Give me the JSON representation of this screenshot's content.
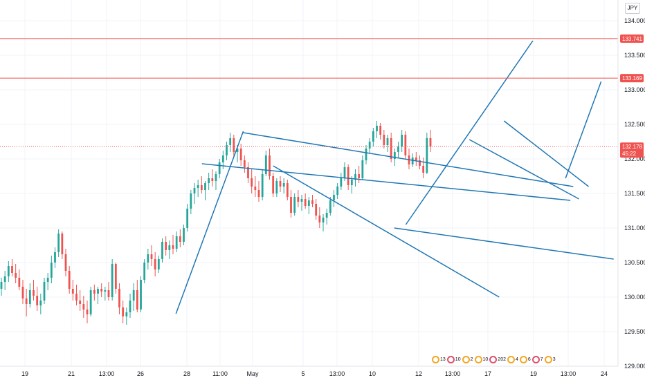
{
  "currency": "JPY",
  "countdown": "45:22",
  "colors": {
    "up": "#26a69a",
    "down": "#ef5350",
    "trendline": "#1f77b4",
    "hline": "#ef5350",
    "price_badge": "#ef5350",
    "axis_text": "#131722",
    "grid": "#f0f3fa"
  },
  "chart_data": {
    "type": "candlestick",
    "title": "",
    "xlabel": "",
    "ylabel": "",
    "ylim": [
      128.8,
      134.3
    ],
    "y_ticks": [
      "134.000",
      "133.500",
      "133.000",
      "132.500",
      "132.000",
      "131.500",
      "131.000",
      "130.500",
      "130.000",
      "129.500",
      "129.000"
    ],
    "x_ticks": [
      "19",
      "21",
      "13:00",
      "26",
      "28",
      "11:00",
      "May",
      "5",
      "13:00",
      "10",
      "12",
      "13:00",
      "17",
      "19",
      "13:00",
      "24"
    ],
    "horizontal_levels": [
      {
        "value": 133.741,
        "label": "133.741"
      },
      {
        "value": 133.169,
        "label": "133.169"
      }
    ],
    "last_price": {
      "value": 132.178,
      "label": "132.178"
    },
    "candles": [
      [
        130.12,
        130.28,
        130.02,
        130.22
      ],
      [
        130.22,
        130.38,
        130.1,
        130.3
      ],
      [
        130.3,
        130.52,
        130.22,
        130.45
      ],
      [
        130.45,
        130.55,
        130.3,
        130.35
      ],
      [
        130.35,
        130.48,
        130.2,
        130.28
      ],
      [
        130.28,
        130.4,
        130.1,
        130.15
      ],
      [
        130.15,
        130.25,
        129.9,
        129.98
      ],
      [
        129.98,
        130.12,
        129.72,
        129.9
      ],
      [
        129.9,
        130.2,
        129.85,
        130.1
      ],
      [
        130.1,
        130.25,
        129.95,
        130.02
      ],
      [
        130.02,
        130.15,
        129.8,
        129.88
      ],
      [
        129.88,
        130.05,
        129.75,
        129.95
      ],
      [
        129.95,
        130.28,
        129.9,
        130.22
      ],
      [
        130.22,
        130.35,
        130.1,
        130.28
      ],
      [
        130.28,
        130.6,
        130.2,
        130.5
      ],
      [
        130.5,
        130.72,
        130.42,
        130.65
      ],
      [
        130.65,
        130.98,
        130.58,
        130.92
      ],
      [
        130.92,
        130.95,
        130.55,
        130.62
      ],
      [
        130.62,
        130.7,
        130.3,
        130.38
      ],
      [
        130.38,
        130.45,
        130.05,
        130.12
      ],
      [
        130.12,
        130.25,
        129.95,
        130.05
      ],
      [
        130.05,
        130.18,
        129.88,
        129.95
      ],
      [
        129.95,
        130.1,
        129.8,
        129.9
      ],
      [
        129.9,
        130.02,
        129.7,
        129.82
      ],
      [
        129.82,
        129.95,
        129.62,
        129.75
      ],
      [
        129.75,
        130.15,
        129.72,
        130.1
      ],
      [
        130.1,
        130.18,
        129.95,
        130.05
      ],
      [
        130.05,
        130.15,
        129.9,
        130.12
      ],
      [
        130.12,
        130.2,
        130.0,
        130.08
      ],
      [
        130.08,
        130.15,
        129.95,
        130.1
      ],
      [
        130.1,
        130.22,
        129.95,
        130.0
      ],
      [
        130.0,
        130.55,
        129.95,
        130.48
      ],
      [
        130.48,
        130.5,
        130.05,
        130.12
      ],
      [
        130.12,
        130.2,
        129.75,
        129.85
      ],
      [
        129.85,
        129.95,
        129.62,
        129.72
      ],
      [
        129.72,
        129.85,
        129.6,
        129.78
      ],
      [
        129.78,
        130.05,
        129.7,
        129.95
      ],
      [
        129.95,
        130.2,
        129.8,
        130.1
      ],
      [
        130.1,
        130.25,
        129.78,
        129.82
      ],
      [
        129.82,
        130.3,
        129.78,
        130.25
      ],
      [
        130.25,
        130.55,
        130.2,
        130.5
      ],
      [
        130.5,
        130.7,
        130.4,
        130.62
      ],
      [
        130.62,
        130.75,
        130.45,
        130.55
      ],
      [
        130.55,
        130.65,
        130.3,
        130.4
      ],
      [
        130.4,
        130.6,
        130.35,
        130.55
      ],
      [
        130.55,
        130.85,
        130.5,
        130.8
      ],
      [
        130.8,
        130.88,
        130.6,
        130.68
      ],
      [
        130.68,
        130.82,
        130.55,
        130.75
      ],
      [
        130.75,
        130.9,
        130.62,
        130.7
      ],
      [
        130.7,
        130.95,
        130.65,
        130.88
      ],
      [
        130.88,
        130.98,
        130.72,
        130.8
      ],
      [
        130.8,
        131.05,
        130.75,
        131.0
      ],
      [
        131.0,
        131.35,
        130.95,
        131.28
      ],
      [
        131.28,
        131.55,
        131.2,
        131.5
      ],
      [
        131.5,
        131.65,
        131.35,
        131.58
      ],
      [
        131.58,
        131.7,
        131.45,
        131.62
      ],
      [
        131.62,
        131.75,
        131.5,
        131.55
      ],
      [
        131.55,
        131.68,
        131.4,
        131.65
      ],
      [
        131.65,
        131.8,
        131.55,
        131.72
      ],
      [
        131.72,
        131.85,
        131.6,
        131.68
      ],
      [
        131.68,
        131.82,
        131.55,
        131.78
      ],
      [
        131.78,
        132.0,
        131.72,
        131.95
      ],
      [
        131.95,
        132.12,
        131.85,
        132.05
      ],
      [
        132.05,
        132.25,
        131.98,
        132.2
      ],
      [
        132.2,
        132.38,
        132.1,
        132.3
      ],
      [
        132.3,
        132.35,
        132.02,
        132.1
      ],
      [
        132.1,
        132.2,
        131.95,
        132.15
      ],
      [
        132.15,
        132.22,
        131.9,
        131.98
      ],
      [
        131.98,
        132.05,
        131.8,
        131.88
      ],
      [
        131.88,
        131.95,
        131.65,
        131.72
      ],
      [
        131.72,
        131.85,
        131.5,
        131.6
      ],
      [
        131.6,
        131.75,
        131.45,
        131.55
      ],
      [
        131.55,
        131.68,
        131.38,
        131.45
      ],
      [
        131.45,
        131.85,
        131.4,
        131.78
      ],
      [
        131.78,
        132.12,
        131.75,
        132.05
      ],
      [
        132.05,
        132.15,
        131.7,
        131.75
      ],
      [
        131.75,
        131.8,
        131.45,
        131.5
      ],
      [
        131.5,
        131.72,
        131.45,
        131.68
      ],
      [
        131.68,
        131.75,
        131.52,
        131.6
      ],
      [
        131.6,
        131.72,
        131.5,
        131.65
      ],
      [
        131.65,
        131.7,
        131.4,
        131.45
      ],
      [
        131.45,
        131.55,
        131.15,
        131.22
      ],
      [
        131.22,
        131.5,
        131.18,
        131.45
      ],
      [
        131.45,
        131.55,
        131.3,
        131.38
      ],
      [
        131.38,
        131.48,
        131.25,
        131.42
      ],
      [
        131.42,
        131.5,
        131.28,
        131.32
      ],
      [
        131.32,
        131.45,
        131.2,
        131.4
      ],
      [
        131.4,
        131.48,
        131.3,
        131.35
      ],
      [
        131.35,
        131.42,
        131.12,
        131.18
      ],
      [
        131.18,
        131.3,
        131.0,
        131.08
      ],
      [
        131.08,
        131.2,
        130.95,
        131.15
      ],
      [
        131.15,
        131.28,
        131.05,
        131.22
      ],
      [
        131.22,
        131.45,
        131.18,
        131.4
      ],
      [
        131.4,
        131.55,
        131.3,
        131.48
      ],
      [
        131.48,
        131.65,
        131.42,
        131.6
      ],
      [
        131.6,
        131.8,
        131.55,
        131.72
      ],
      [
        131.72,
        131.95,
        131.68,
        131.88
      ],
      [
        131.88,
        131.92,
        131.55,
        131.62
      ],
      [
        131.62,
        131.75,
        131.5,
        131.7
      ],
      [
        131.7,
        131.85,
        131.6,
        131.78
      ],
      [
        131.78,
        131.9,
        131.65,
        131.72
      ],
      [
        131.72,
        132.05,
        131.7,
        131.98
      ],
      [
        131.98,
        132.2,
        131.92,
        132.15
      ],
      [
        132.15,
        132.3,
        132.08,
        132.25
      ],
      [
        132.25,
        132.45,
        132.18,
        132.4
      ],
      [
        132.4,
        132.55,
        132.3,
        132.48
      ],
      [
        132.48,
        132.52,
        132.28,
        132.35
      ],
      [
        132.35,
        132.42,
        132.15,
        132.2
      ],
      [
        132.2,
        132.35,
        132.1,
        132.3
      ],
      [
        132.3,
        132.38,
        131.95,
        132.0
      ],
      [
        132.0,
        132.15,
        131.9,
        132.1
      ],
      [
        132.1,
        132.25,
        132.02,
        132.18
      ],
      [
        132.18,
        132.42,
        132.1,
        132.35
      ],
      [
        132.35,
        132.4,
        132.0,
        132.05
      ],
      [
        132.05,
        132.15,
        131.85,
        131.92
      ],
      [
        131.92,
        132.08,
        131.88,
        132.02
      ],
      [
        132.02,
        132.1,
        131.9,
        131.98
      ],
      [
        131.98,
        132.05,
        131.85,
        131.9
      ],
      [
        131.9,
        132.02,
        131.72,
        131.8
      ],
      [
        131.8,
        132.38,
        131.78,
        132.3
      ],
      [
        132.3,
        132.42,
        132.1,
        132.18
      ]
    ],
    "trendlines": [
      {
        "from": [
          "2022-04-25T13:00",
          129.76
        ],
        "to": [
          "2022-04-28T11:00",
          132.4
        ]
      },
      {
        "from": [
          "2022-04-28T11:00",
          132.38
        ],
        "to": [
          "2022-05-12T18:00",
          131.6
        ]
      },
      {
        "from": [
          "2022-04-26T16:00",
          131.93
        ],
        "to": [
          "2022-05-12T15:00",
          131.4
        ]
      },
      {
        "from": [
          "2022-04-29T18:00",
          131.9
        ],
        "to": [
          "2022-05-09T13:00",
          130.0
        ]
      },
      {
        "from": [
          "2022-05-05T00:00",
          131.0
        ],
        "to": [
          "2022-05-14T12:00",
          130.55
        ]
      },
      {
        "from": [
          "2022-05-05T12:00",
          131.05
        ],
        "to": [
          "2022-05-11T00:00",
          133.71
        ]
      },
      {
        "from": [
          "2022-05-09T18:00",
          132.55
        ],
        "to": [
          "2022-05-13T10:00",
          131.6
        ]
      },
      {
        "from": [
          "2022-05-08T06:00",
          132.28
        ],
        "to": [
          "2022-05-13T00:00",
          131.42
        ]
      },
      {
        "from": [
          "2022-05-12T10:00",
          131.72
        ],
        "to": [
          "2022-05-13T23:00",
          133.12
        ]
      }
    ]
  },
  "events": [
    {
      "label": "13"
    },
    {
      "label": "10"
    },
    {
      "label": "2"
    },
    {
      "label": "10"
    },
    {
      "label": "202"
    },
    {
      "label": "4"
    },
    {
      "label": "6"
    },
    {
      "label": "7"
    },
    {
      "label": "3"
    }
  ]
}
